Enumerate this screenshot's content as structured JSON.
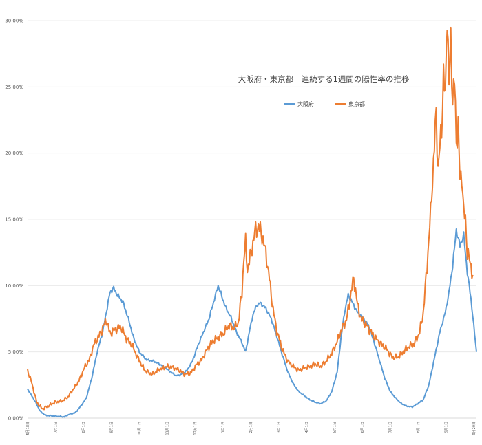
{
  "chart_data": {
    "type": "line",
    "title": "大阪府・東京都　連続する1週間の陽性率の推移",
    "xlabel": "",
    "ylabel": "",
    "ylim": [
      0,
      30
    ],
    "y_ticks": [
      "0.00%",
      "5.00%",
      "10.00%",
      "15.00%",
      "20.00%",
      "25.00%",
      "30.00%"
    ],
    "x_tick_labels": [
      "5月18日",
      "7月1日",
      "8月1日",
      "9月1日",
      "10月1日",
      "11月1日",
      "12月1日",
      "1月1日",
      "2月1日",
      "3月1日",
      "4月1日",
      "5月1日",
      "6月1日",
      "7月1日",
      "8月1日",
      "9月1日",
      "9月20日"
    ],
    "grid": "horizontal",
    "legend_position": "top-center",
    "x_domain": [
      0,
      490
    ],
    "series": [
      {
        "name": "大阪府",
        "color": "#5b9bd5",
        "points": [
          [
            0,
            2.2
          ],
          [
            8,
            1.3
          ],
          [
            14,
            0.5
          ],
          [
            20,
            0.2
          ],
          [
            30,
            0.15
          ],
          [
            40,
            0.1
          ],
          [
            46,
            0.3
          ],
          [
            52,
            0.4
          ],
          [
            58,
            0.9
          ],
          [
            64,
            1.5
          ],
          [
            70,
            3.0
          ],
          [
            76,
            5.0
          ],
          [
            82,
            6.5
          ],
          [
            86,
            8.0
          ],
          [
            90,
            9.5
          ],
          [
            94,
            9.8
          ],
          [
            98,
            9.3
          ],
          [
            104,
            8.8
          ],
          [
            110,
            7.5
          ],
          [
            116,
            6.0
          ],
          [
            122,
            5.0
          ],
          [
            130,
            4.4
          ],
          [
            138,
            4.3
          ],
          [
            146,
            4.0
          ],
          [
            154,
            3.6
          ],
          [
            162,
            3.2
          ],
          [
            168,
            3.3
          ],
          [
            174,
            3.6
          ],
          [
            180,
            4.3
          ],
          [
            186,
            5.5
          ],
          [
            192,
            6.5
          ],
          [
            198,
            7.5
          ],
          [
            204,
            9.0
          ],
          [
            208,
            10.0
          ],
          [
            212,
            9.2
          ],
          [
            216,
            8.4
          ],
          [
            222,
            7.6
          ],
          [
            228,
            6.5
          ],
          [
            234,
            5.7
          ],
          [
            238,
            5.0
          ],
          [
            242,
            6.5
          ],
          [
            246,
            7.8
          ],
          [
            250,
            8.5
          ],
          [
            254,
            8.7
          ],
          [
            260,
            8.3
          ],
          [
            266,
            7.5
          ],
          [
            272,
            6.2
          ],
          [
            278,
            4.8
          ],
          [
            284,
            3.5
          ],
          [
            290,
            2.6
          ],
          [
            296,
            2.0
          ],
          [
            302,
            1.7
          ],
          [
            308,
            1.4
          ],
          [
            314,
            1.2
          ],
          [
            320,
            1.1
          ],
          [
            326,
            1.3
          ],
          [
            332,
            2.0
          ],
          [
            338,
            3.5
          ],
          [
            342,
            6.0
          ],
          [
            346,
            8.0
          ],
          [
            350,
            9.3
          ],
          [
            354,
            8.8
          ],
          [
            360,
            8.0
          ],
          [
            366,
            7.6
          ],
          [
            372,
            7.0
          ],
          [
            378,
            5.8
          ],
          [
            384,
            4.4
          ],
          [
            390,
            3.0
          ],
          [
            396,
            2.0
          ],
          [
            402,
            1.5
          ],
          [
            408,
            1.1
          ],
          [
            414,
            0.9
          ],
          [
            420,
            0.85
          ],
          [
            426,
            1.1
          ],
          [
            432,
            1.4
          ],
          [
            438,
            2.5
          ],
          [
            444,
            4.5
          ],
          [
            450,
            6.5
          ],
          [
            456,
            8.0
          ],
          [
            460,
            9.5
          ],
          [
            464,
            11.5
          ],
          [
            468,
            14.2
          ],
          [
            472,
            13.0
          ],
          [
            476,
            13.8
          ],
          [
            480,
            11.0
          ],
          [
            484,
            9.0
          ],
          [
            487,
            7.0
          ],
          [
            490,
            5.0
          ]
        ]
      },
      {
        "name": "東京都",
        "color": "#ed7d31",
        "points": [
          [
            0,
            3.6
          ],
          [
            4,
            2.8
          ],
          [
            10,
            1.2
          ],
          [
            16,
            0.7
          ],
          [
            22,
            0.9
          ],
          [
            30,
            1.2
          ],
          [
            38,
            1.3
          ],
          [
            44,
            1.6
          ],
          [
            50,
            2.2
          ],
          [
            56,
            2.8
          ],
          [
            62,
            3.8
          ],
          [
            68,
            4.5
          ],
          [
            72,
            5.5
          ],
          [
            78,
            6.2
          ],
          [
            82,
            6.8
          ],
          [
            86,
            7.4
          ],
          [
            90,
            6.4
          ],
          [
            96,
            6.7
          ],
          [
            102,
            6.9
          ],
          [
            108,
            6.0
          ],
          [
            114,
            5.5
          ],
          [
            120,
            4.6
          ],
          [
            128,
            3.6
          ],
          [
            136,
            3.3
          ],
          [
            144,
            3.7
          ],
          [
            152,
            3.9
          ],
          [
            160,
            3.8
          ],
          [
            166,
            3.6
          ],
          [
            172,
            3.3
          ],
          [
            178,
            3.4
          ],
          [
            184,
            4.0
          ],
          [
            190,
            4.4
          ],
          [
            196,
            5.2
          ],
          [
            202,
            5.8
          ],
          [
            208,
            6.1
          ],
          [
            214,
            6.4
          ],
          [
            220,
            7.0
          ],
          [
            226,
            6.8
          ],
          [
            230,
            7.2
          ],
          [
            234,
            9.5
          ],
          [
            236,
            12.0
          ],
          [
            238,
            13.2
          ],
          [
            240,
            11.2
          ],
          [
            244,
            12.5
          ],
          [
            248,
            14.0
          ],
          [
            252,
            14.5
          ],
          [
            256,
            13.8
          ],
          [
            260,
            12.5
          ],
          [
            264,
            10.5
          ],
          [
            268,
            8.2
          ],
          [
            272,
            6.6
          ],
          [
            278,
            5.2
          ],
          [
            284,
            4.3
          ],
          [
            290,
            3.9
          ],
          [
            296,
            3.6
          ],
          [
            302,
            3.8
          ],
          [
            308,
            3.9
          ],
          [
            314,
            4.1
          ],
          [
            320,
            3.9
          ],
          [
            326,
            4.3
          ],
          [
            332,
            4.9
          ],
          [
            338,
            5.8
          ],
          [
            344,
            6.9
          ],
          [
            348,
            7.4
          ],
          [
            352,
            9.0
          ],
          [
            356,
            10.6
          ],
          [
            360,
            8.6
          ],
          [
            364,
            7.5
          ],
          [
            368,
            7.2
          ],
          [
            374,
            6.6
          ],
          [
            380,
            6.0
          ],
          [
            386,
            5.6
          ],
          [
            392,
            5.2
          ],
          [
            398,
            4.6
          ],
          [
            404,
            4.6
          ],
          [
            410,
            5.0
          ],
          [
            416,
            5.4
          ],
          [
            422,
            5.6
          ],
          [
            428,
            6.5
          ],
          [
            432,
            8.0
          ],
          [
            436,
            11.5
          ],
          [
            440,
            15.5
          ],
          [
            444,
            20.5
          ],
          [
            446,
            23.0
          ],
          [
            448,
            18.8
          ],
          [
            452,
            22.0
          ],
          [
            454,
            26.0
          ],
          [
            456,
            24.0
          ],
          [
            458,
            31.0
          ],
          [
            460,
            25.0
          ],
          [
            462,
            28.5
          ],
          [
            464,
            24.0
          ],
          [
            466,
            25.5
          ],
          [
            468,
            21.0
          ],
          [
            470,
            22.0
          ],
          [
            472,
            18.0
          ],
          [
            474,
            18.5
          ],
          [
            476,
            15.5
          ],
          [
            478,
            15.0
          ],
          [
            480,
            12.5
          ],
          [
            484,
            11.5
          ],
          [
            486,
            10.8
          ]
        ]
      }
    ]
  }
}
